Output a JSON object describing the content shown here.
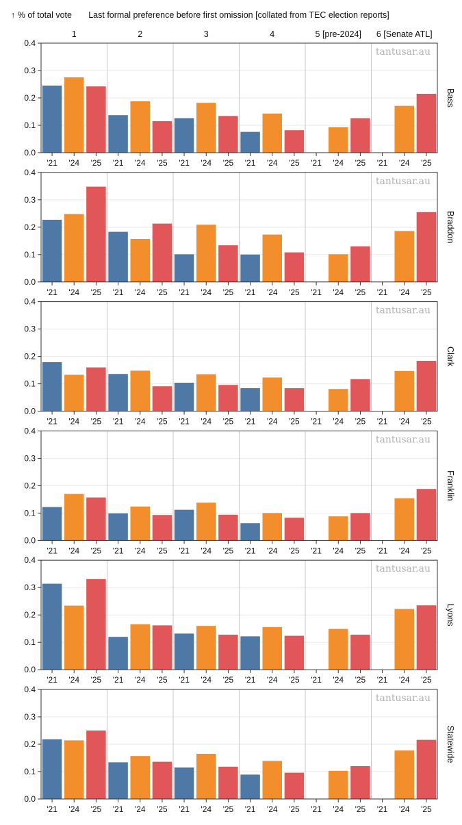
{
  "header": {
    "y_label": "% of total vote",
    "title": "Last formal preference before first omission [collated from TEC election reports]"
  },
  "watermark": "tantusar.au",
  "colors": {
    "'21": "#4e79a7",
    "'24": "#f28e2b",
    "'25": "#e15759"
  },
  "chart_data": {
    "type": "bar",
    "columns": [
      "1",
      "2",
      "3",
      "4",
      "5 [pre-2024]",
      "6 [Senate ATL]"
    ],
    "rows": [
      "Bass",
      "Braddon",
      "Clark",
      "Franklin",
      "Lyons",
      "Statewide"
    ],
    "categories": [
      "'21",
      "'24",
      "'25"
    ],
    "y_ticks": [
      "0.0",
      "0.1",
      "0.2",
      "0.3",
      "0.4"
    ],
    "ylim": [
      0,
      0.4
    ],
    "values": {
      "Bass": [
        [
          0.245,
          0.275,
          0.242
        ],
        [
          0.137,
          0.188,
          0.115
        ],
        [
          0.126,
          0.182,
          0.134
        ],
        [
          0.076,
          0.143,
          0.082
        ],
        [
          null,
          0.093,
          0.126
        ],
        [
          null,
          0.171,
          0.215
        ]
      ],
      "Braddon": [
        [
          0.227,
          0.248,
          0.348
        ],
        [
          0.183,
          0.157,
          0.213
        ],
        [
          0.101,
          0.209,
          0.134
        ],
        [
          0.1,
          0.173,
          0.108
        ],
        [
          null,
          0.101,
          0.13
        ],
        [
          null,
          0.186,
          0.255
        ]
      ],
      "Clark": [
        [
          0.179,
          0.133,
          0.16
        ],
        [
          0.136,
          0.148,
          0.091
        ],
        [
          0.104,
          0.135,
          0.096
        ],
        [
          0.084,
          0.123,
          0.084
        ],
        [
          null,
          0.081,
          0.117
        ],
        [
          null,
          0.147,
          0.184
        ]
      ],
      "Franklin": [
        [
          0.122,
          0.17,
          0.157
        ],
        [
          0.099,
          0.124,
          0.093
        ],
        [
          0.112,
          0.138,
          0.094
        ],
        [
          0.063,
          0.1,
          0.083
        ],
        [
          null,
          0.088,
          0.1
        ],
        [
          null,
          0.154,
          0.188
        ]
      ],
      "Lyons": [
        [
          0.314,
          0.234,
          0.331
        ],
        [
          0.12,
          0.166,
          0.162
        ],
        [
          0.132,
          0.16,
          0.128
        ],
        [
          0.122,
          0.156,
          0.124
        ],
        [
          null,
          0.149,
          0.128
        ],
        [
          null,
          0.222,
          0.235
        ]
      ],
      "Statewide": [
        [
          0.218,
          0.214,
          0.25
        ],
        [
          0.134,
          0.157,
          0.136
        ],
        [
          0.115,
          0.165,
          0.118
        ],
        [
          0.089,
          0.139,
          0.096
        ],
        [
          null,
          0.103,
          0.12
        ],
        [
          null,
          0.177,
          0.216
        ]
      ]
    }
  }
}
